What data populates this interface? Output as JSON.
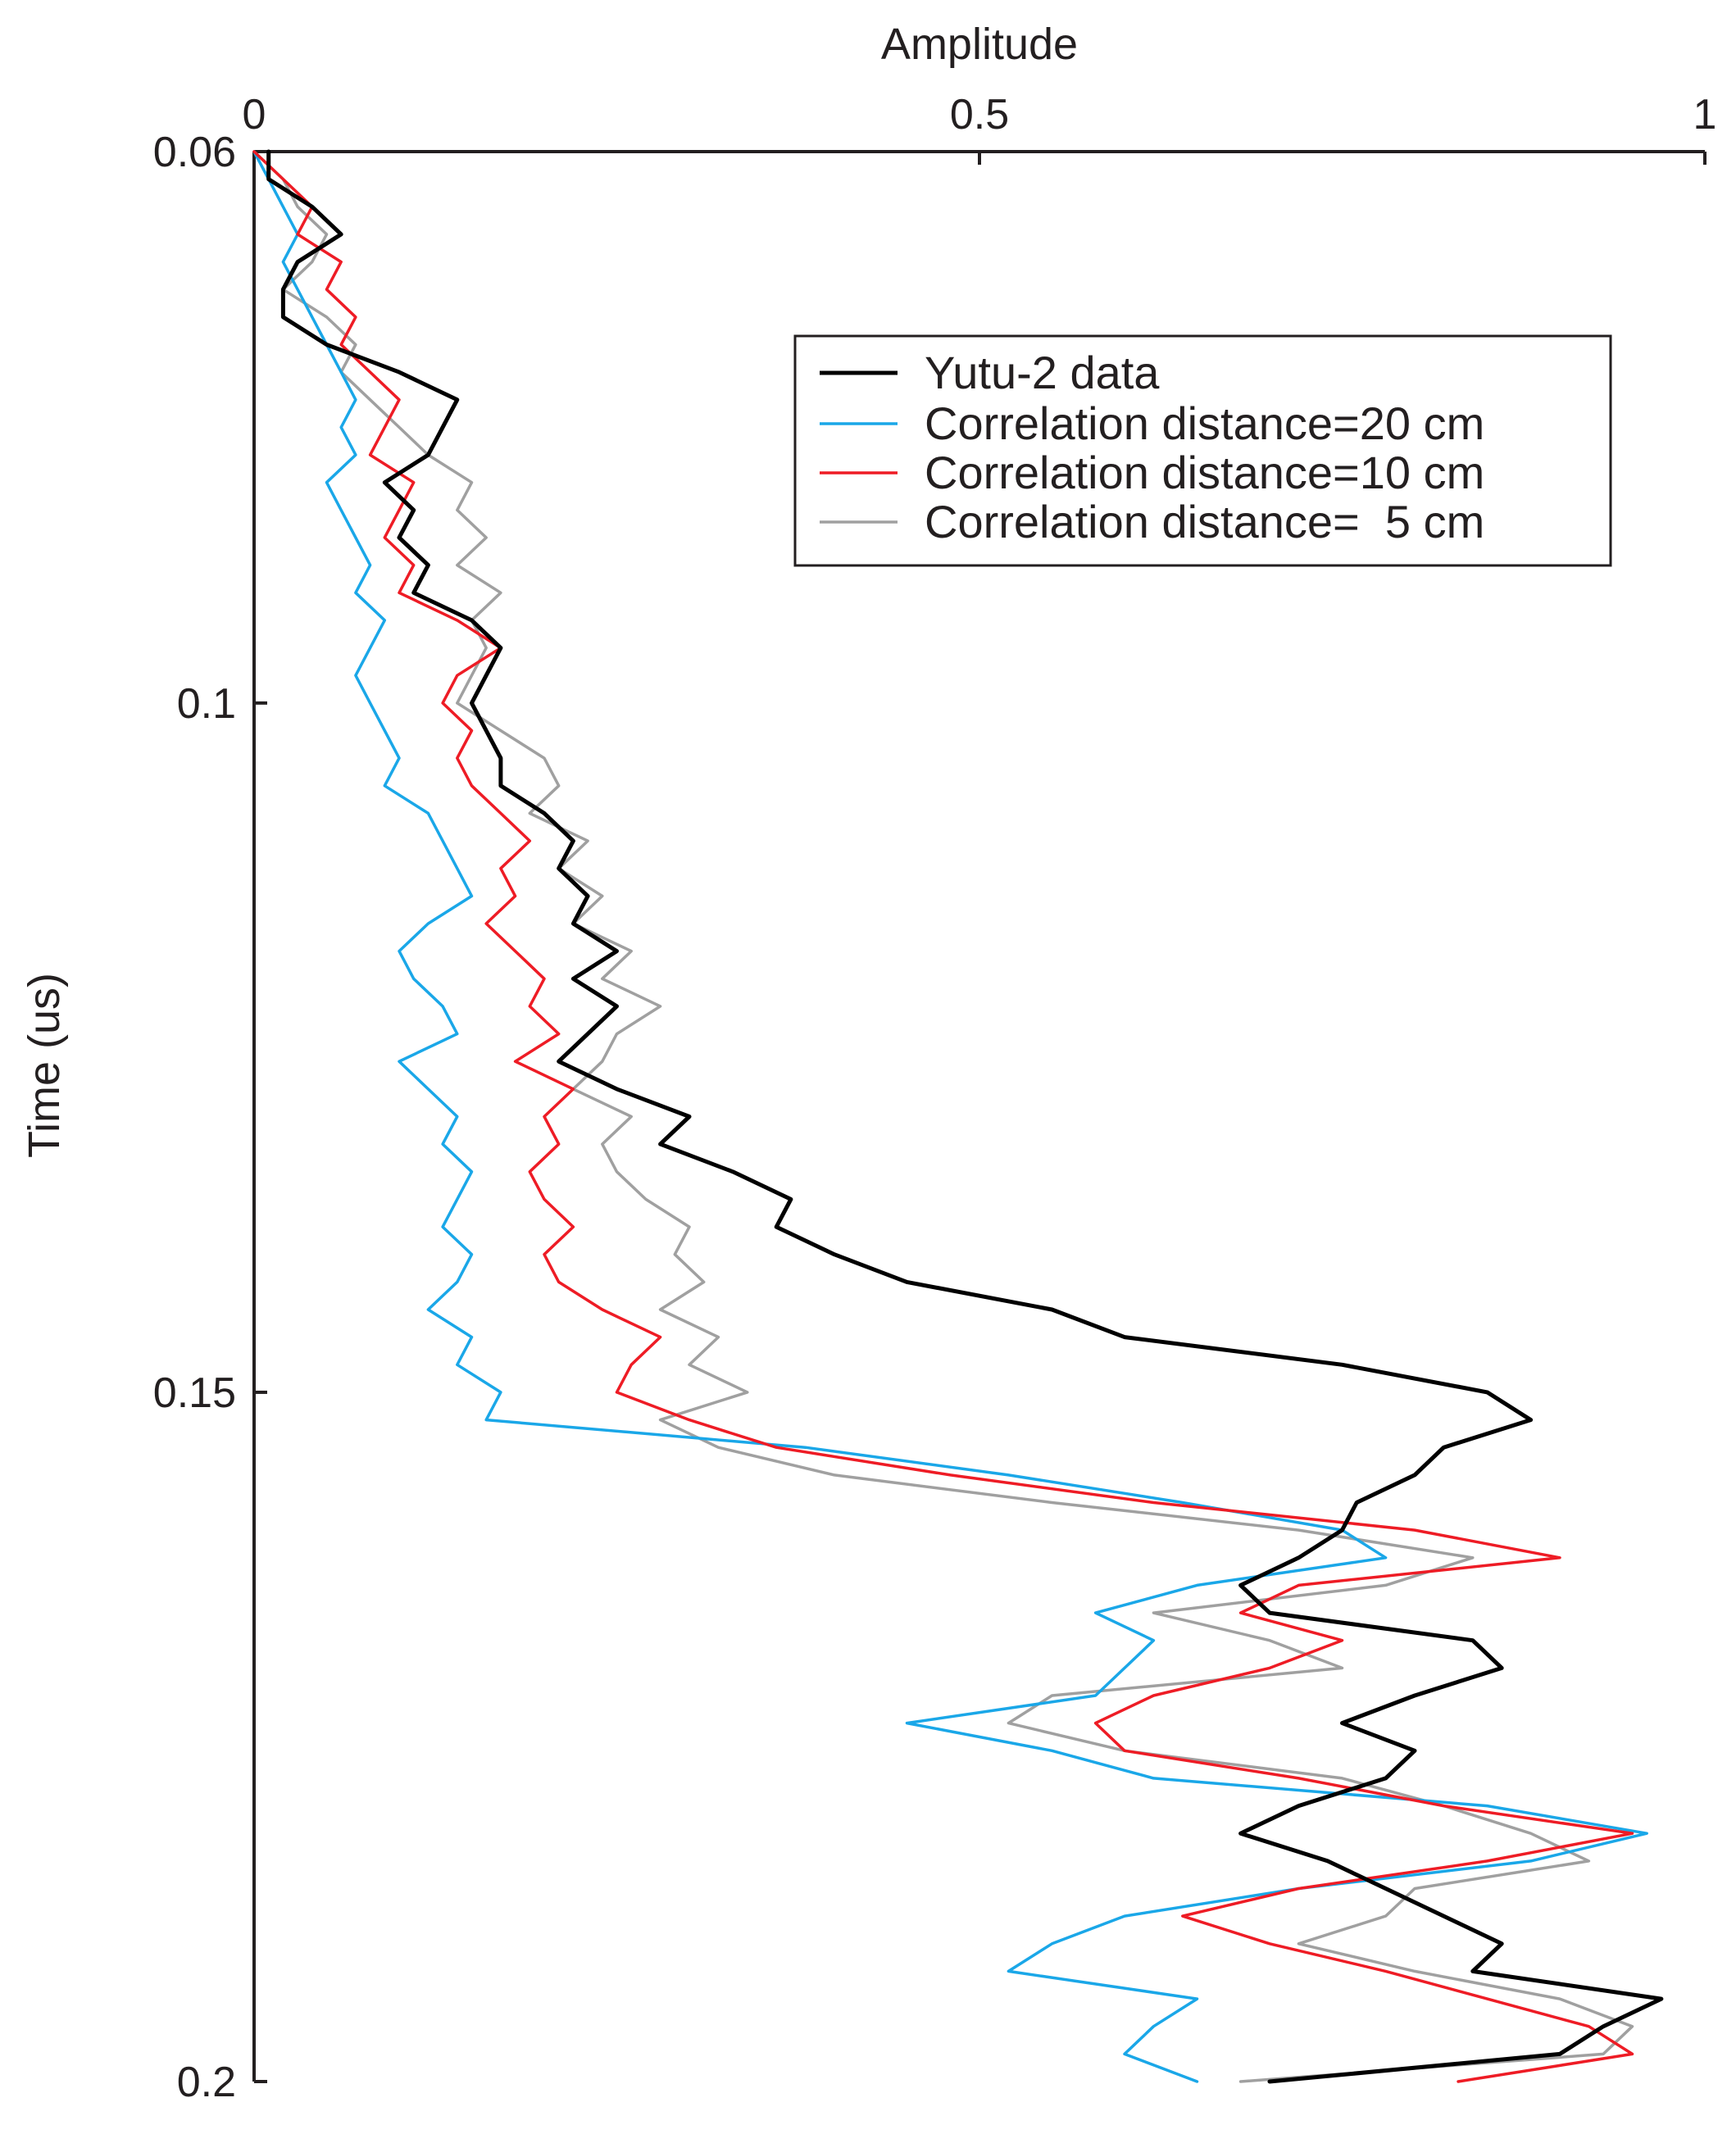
{
  "chart_data": {
    "type": "line",
    "orientation": "vertical-depth",
    "title": "",
    "xlabel": "Amplitude",
    "ylabel": "Time (us)",
    "xlim": [
      0,
      1
    ],
    "ylim": [
      0.06,
      0.2
    ],
    "x_axis_position": "top",
    "y_axis_inverted": true,
    "x_ticks": [
      "0",
      "0.5",
      "1"
    ],
    "x_tick_values": [
      0,
      0.5,
      1
    ],
    "y_ticks": [
      "0.06",
      "0.1",
      "0.15",
      "0.2"
    ],
    "y_tick_values": [
      0.06,
      0.1,
      0.15,
      0.2
    ],
    "grid": false,
    "legend_position": "top-right",
    "series": [
      {
        "name": "Yutu-2 data",
        "color": "#000000",
        "width": 5,
        "t": [
          0.06,
          0.062,
          0.064,
          0.066,
          0.068,
          0.07,
          0.072,
          0.074,
          0.076,
          0.078,
          0.08,
          0.082,
          0.084,
          0.086,
          0.088,
          0.09,
          0.092,
          0.094,
          0.096,
          0.098,
          0.1,
          0.102,
          0.104,
          0.106,
          0.108,
          0.11,
          0.112,
          0.114,
          0.116,
          0.118,
          0.12,
          0.122,
          0.124,
          0.126,
          0.128,
          0.13,
          0.132,
          0.134,
          0.136,
          0.138,
          0.14,
          0.142,
          0.144,
          0.146,
          0.148,
          0.15,
          0.152,
          0.154,
          0.156,
          0.158,
          0.16,
          0.162,
          0.164,
          0.166,
          0.168,
          0.17,
          0.172,
          0.174,
          0.176,
          0.178,
          0.18,
          0.182,
          0.184,
          0.186,
          0.188,
          0.19,
          0.192,
          0.194,
          0.196,
          0.198,
          0.2
        ],
        "a": [
          0.01,
          0.01,
          0.04,
          0.06,
          0.03,
          0.02,
          0.02,
          0.05,
          0.1,
          0.14,
          0.13,
          0.12,
          0.09,
          0.11,
          0.1,
          0.12,
          0.11,
          0.15,
          0.17,
          0.16,
          0.15,
          0.16,
          0.17,
          0.17,
          0.2,
          0.22,
          0.21,
          0.23,
          0.22,
          0.25,
          0.22,
          0.25,
          0.23,
          0.21,
          0.25,
          0.3,
          0.28,
          0.33,
          0.37,
          0.36,
          0.4,
          0.45,
          0.55,
          0.6,
          0.75,
          0.85,
          0.88,
          0.82,
          0.8,
          0.76,
          0.75,
          0.72,
          0.68,
          0.7,
          0.84,
          0.86,
          0.8,
          0.75,
          0.8,
          0.78,
          0.72,
          0.68,
          0.74,
          0.78,
          0.82,
          0.86,
          0.84,
          0.97,
          0.93,
          0.9,
          0.7
        ]
      },
      {
        "name": "Correlation distance=20 cm",
        "color": "#1aa7e8",
        "width": 3.5,
        "t": [
          0.06,
          0.062,
          0.064,
          0.066,
          0.068,
          0.07,
          0.072,
          0.074,
          0.076,
          0.078,
          0.08,
          0.082,
          0.084,
          0.086,
          0.088,
          0.09,
          0.092,
          0.094,
          0.096,
          0.098,
          0.1,
          0.102,
          0.104,
          0.106,
          0.108,
          0.11,
          0.112,
          0.114,
          0.116,
          0.118,
          0.12,
          0.122,
          0.124,
          0.126,
          0.128,
          0.13,
          0.132,
          0.134,
          0.136,
          0.138,
          0.14,
          0.142,
          0.144,
          0.146,
          0.148,
          0.15,
          0.152,
          0.154,
          0.156,
          0.158,
          0.16,
          0.162,
          0.164,
          0.166,
          0.168,
          0.17,
          0.172,
          0.174,
          0.176,
          0.178,
          0.18,
          0.182,
          0.184,
          0.186,
          0.188,
          0.19,
          0.192,
          0.194,
          0.196,
          0.198,
          0.2
        ],
        "a": [
          0.0,
          0.01,
          0.02,
          0.03,
          0.02,
          0.03,
          0.04,
          0.05,
          0.06,
          0.07,
          0.06,
          0.07,
          0.05,
          0.06,
          0.07,
          0.08,
          0.07,
          0.09,
          0.08,
          0.07,
          0.08,
          0.09,
          0.1,
          0.09,
          0.12,
          0.13,
          0.14,
          0.15,
          0.12,
          0.1,
          0.11,
          0.13,
          0.14,
          0.1,
          0.12,
          0.14,
          0.13,
          0.15,
          0.14,
          0.13,
          0.15,
          0.14,
          0.12,
          0.15,
          0.14,
          0.17,
          0.16,
          0.38,
          0.52,
          0.64,
          0.75,
          0.78,
          0.65,
          0.58,
          0.62,
          0.6,
          0.58,
          0.45,
          0.55,
          0.62,
          0.85,
          0.96,
          0.88,
          0.72,
          0.6,
          0.55,
          0.52,
          0.65,
          0.62,
          0.6,
          0.65
        ]
      },
      {
        "name": "Correlation distance=10 cm",
        "color": "#ee1c25",
        "width": 3.5,
        "t": [
          0.06,
          0.062,
          0.064,
          0.066,
          0.068,
          0.07,
          0.072,
          0.074,
          0.076,
          0.078,
          0.08,
          0.082,
          0.084,
          0.086,
          0.088,
          0.09,
          0.092,
          0.094,
          0.096,
          0.098,
          0.1,
          0.102,
          0.104,
          0.106,
          0.108,
          0.11,
          0.112,
          0.114,
          0.116,
          0.118,
          0.12,
          0.122,
          0.124,
          0.126,
          0.128,
          0.13,
          0.132,
          0.134,
          0.136,
          0.138,
          0.14,
          0.142,
          0.144,
          0.146,
          0.148,
          0.15,
          0.152,
          0.154,
          0.156,
          0.158,
          0.16,
          0.162,
          0.164,
          0.166,
          0.168,
          0.17,
          0.172,
          0.174,
          0.176,
          0.178,
          0.18,
          0.182,
          0.184,
          0.186,
          0.188,
          0.19,
          0.192,
          0.194,
          0.196,
          0.198,
          0.2
        ],
        "a": [
          0.0,
          0.02,
          0.04,
          0.03,
          0.06,
          0.05,
          0.07,
          0.06,
          0.08,
          0.1,
          0.09,
          0.08,
          0.11,
          0.1,
          0.09,
          0.11,
          0.1,
          0.14,
          0.17,
          0.14,
          0.13,
          0.15,
          0.14,
          0.15,
          0.17,
          0.19,
          0.17,
          0.18,
          0.16,
          0.18,
          0.2,
          0.19,
          0.21,
          0.18,
          0.22,
          0.2,
          0.21,
          0.19,
          0.2,
          0.22,
          0.2,
          0.21,
          0.24,
          0.28,
          0.26,
          0.25,
          0.3,
          0.36,
          0.48,
          0.62,
          0.8,
          0.9,
          0.72,
          0.68,
          0.75,
          0.7,
          0.62,
          0.58,
          0.6,
          0.72,
          0.82,
          0.95,
          0.85,
          0.72,
          0.64,
          0.7,
          0.78,
          0.85,
          0.92,
          0.95,
          0.83
        ]
      },
      {
        "name": "Correlation distance=  5 cm",
        "color": "#a0a0a0",
        "width": 3.5,
        "t": [
          0.06,
          0.062,
          0.064,
          0.066,
          0.068,
          0.07,
          0.072,
          0.074,
          0.076,
          0.078,
          0.08,
          0.082,
          0.084,
          0.086,
          0.088,
          0.09,
          0.092,
          0.094,
          0.096,
          0.098,
          0.1,
          0.102,
          0.104,
          0.106,
          0.108,
          0.11,
          0.112,
          0.114,
          0.116,
          0.118,
          0.12,
          0.122,
          0.124,
          0.126,
          0.128,
          0.13,
          0.132,
          0.134,
          0.136,
          0.138,
          0.14,
          0.142,
          0.144,
          0.146,
          0.148,
          0.15,
          0.152,
          0.154,
          0.156,
          0.158,
          0.16,
          0.162,
          0.164,
          0.166,
          0.168,
          0.17,
          0.172,
          0.174,
          0.176,
          0.178,
          0.18,
          0.182,
          0.184,
          0.186,
          0.188,
          0.19,
          0.192,
          0.194,
          0.196,
          0.198,
          0.2
        ],
        "a": [
          0.0,
          0.02,
          0.03,
          0.05,
          0.04,
          0.02,
          0.05,
          0.07,
          0.06,
          0.08,
          0.1,
          0.12,
          0.15,
          0.14,
          0.16,
          0.14,
          0.17,
          0.15,
          0.16,
          0.15,
          0.14,
          0.17,
          0.2,
          0.21,
          0.19,
          0.23,
          0.21,
          0.24,
          0.22,
          0.26,
          0.24,
          0.28,
          0.25,
          0.24,
          0.22,
          0.26,
          0.24,
          0.25,
          0.27,
          0.3,
          0.29,
          0.31,
          0.28,
          0.32,
          0.3,
          0.34,
          0.28,
          0.32,
          0.4,
          0.55,
          0.72,
          0.84,
          0.78,
          0.62,
          0.7,
          0.75,
          0.55,
          0.52,
          0.6,
          0.75,
          0.82,
          0.88,
          0.92,
          0.8,
          0.78,
          0.72,
          0.8,
          0.9,
          0.95,
          0.93,
          0.68
        ]
      }
    ]
  }
}
